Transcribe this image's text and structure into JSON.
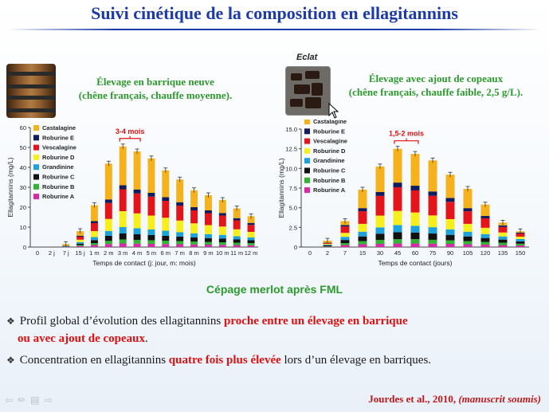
{
  "slide": {
    "title": "Suivi cinétique de la composition en ellagitannins",
    "eclat_label": "Eclat",
    "left_condition": {
      "line1": "Élevage en barrique neuve",
      "line2": "(chêne français, chauffe moyenne)."
    },
    "right_condition": {
      "line1": "Élevage avec ajout de copeaux",
      "line2": "(chêne français, chauffe faible, 2,5 g/L)."
    },
    "cepage": "Cépage merlot après FML",
    "bullet1": {
      "text_a": "Profil global d’évolution des ellagitannins ",
      "red_a": "proche entre un élevage en barrique",
      "red_b": "ou avec ajout de copeaux",
      "end_b": "."
    },
    "bullet2": {
      "text_a": "Concentration en ellagitannins ",
      "red_a": "quatre fois plus élevée",
      "text_b": " lors d’un élevage en barriques."
    },
    "citation": {
      "authors": "Jourdes et al., 2010, ",
      "note": "(manuscrit soumis)"
    },
    "nav_icons": [
      "back-arrow-icon",
      "pen-icon",
      "menu-icon",
      "forward-arrow-icon"
    ],
    "colors": {
      "title": "#1c3aa9",
      "green": "#2c9a2c",
      "red": "#e31010"
    }
  },
  "chart_data": [
    {
      "type": "bar",
      "stacked": true,
      "categories": [
        "0",
        "2 j",
        "7 j",
        "15 j",
        "1 m",
        "2 m",
        "3 m",
        "4 m",
        "5 m",
        "6 m",
        "7 m",
        "8 m",
        "9 m",
        "10 m",
        "11 m",
        "12 m"
      ],
      "ylabel": "Ellagitannins (mg/L)",
      "xlabel": "Temps de contact (j: jour, m: mois)",
      "ylim": [
        0,
        60
      ],
      "yticks": [
        "0",
        "10",
        "20",
        "30",
        "40",
        "50",
        "60"
      ],
      "annotation": "3-4 mois",
      "annotation_range": [
        "3 m",
        "4 m"
      ],
      "legend_position": "top-left",
      "series": [
        {
          "name": "Roburine A",
          "color": "#d62aa7",
          "values": [
            0,
            0,
            0.1,
            0.5,
            1,
            1.5,
            1.8,
            1.7,
            1.6,
            1.5,
            1.4,
            1.3,
            1.2,
            1.1,
            1.0,
            0.9
          ]
        },
        {
          "name": "Roburine B",
          "color": "#33b233",
          "values": [
            0,
            0,
            0.1,
            0.5,
            1,
            1.6,
            2.0,
            1.9,
            1.8,
            1.7,
            1.6,
            1.5,
            1.4,
            1.3,
            1.2,
            1.1
          ]
        },
        {
          "name": "Roburine C",
          "color": "#111111",
          "values": [
            0,
            0,
            0.1,
            0.7,
            1.5,
            2.5,
            3.0,
            2.8,
            2.6,
            2.4,
            2.2,
            2.0,
            1.9,
            1.8,
            1.6,
            1.4
          ]
        },
        {
          "name": "Grandinine",
          "color": "#1ea0d8",
          "values": [
            0,
            0,
            0.1,
            0.8,
            1.5,
            2.5,
            3.2,
            3.0,
            2.8,
            2.6,
            2.3,
            2.1,
            2.0,
            1.9,
            1.6,
            1.4
          ]
        },
        {
          "name": "Roburine D",
          "color": "#f7ee1e",
          "values": [
            0,
            0,
            0.2,
            1.2,
            3,
            6,
            8,
            7.5,
            7,
            6.5,
            5.8,
            5,
            4.5,
            4.2,
            3.5,
            2.8
          ]
        },
        {
          "name": "Vescalagine",
          "color": "#e3151b",
          "values": [
            0,
            0,
            0.2,
            1.5,
            4,
            8,
            11.0,
            10,
            9.5,
            8.5,
            7.5,
            6.5,
            6.0,
            5.5,
            4.5,
            3.5
          ]
        },
        {
          "name": "Roburine E",
          "color": "#0f1d5c",
          "values": [
            0,
            0,
            0.1,
            0.5,
            1,
            1.8,
            2.0,
            2.0,
            1.9,
            1.8,
            1.7,
            1.6,
            1.4,
            1.3,
            1.1,
            1.0
          ]
        },
        {
          "name": "Castalagine",
          "color": "#f5b21c",
          "values": [
            0,
            0,
            0.6,
            2.3,
            8,
            18,
            19.5,
            19.1,
            17.3,
            13.5,
            11.4,
            8.5,
            7.6,
            6.5,
            4.9,
            3.4
          ]
        }
      ]
    },
    {
      "type": "bar",
      "stacked": true,
      "categories": [
        "0",
        "2",
        "7",
        "15",
        "30",
        "45",
        "60",
        "75",
        "90",
        "105",
        "120",
        "135",
        "150"
      ],
      "ylabel": "Ellagitannins (mg/L)",
      "xlabel": "Temps de contact (jours)",
      "ylim": [
        0,
        15
      ],
      "yticks": [
        "0",
        "2.5",
        "5.0",
        "7.5",
        "10.0",
        "12.5",
        "15.0"
      ],
      "annotation": "1,5-2 mois",
      "annotation_range": [
        "45",
        "60"
      ],
      "legend_position": "top-left",
      "series": [
        {
          "name": "Roburine A",
          "color": "#d62aa7",
          "values": [
            0,
            0.05,
            0.25,
            0.35,
            0.4,
            0.45,
            0.45,
            0.42,
            0.4,
            0.35,
            0.3,
            0.25,
            0.2
          ]
        },
        {
          "name": "Roburine B",
          "color": "#33b233",
          "values": [
            0,
            0.05,
            0.25,
            0.4,
            0.5,
            0.55,
            0.55,
            0.5,
            0.45,
            0.4,
            0.35,
            0.3,
            0.22
          ]
        },
        {
          "name": "Roburine C",
          "color": "#111111",
          "values": [
            0,
            0.1,
            0.4,
            0.6,
            0.8,
            0.9,
            0.85,
            0.8,
            0.7,
            0.6,
            0.5,
            0.4,
            0.3
          ]
        },
        {
          "name": "Grandinine",
          "color": "#1ea0d8",
          "values": [
            0,
            0.1,
            0.4,
            0.6,
            0.8,
            0.9,
            0.85,
            0.8,
            0.7,
            0.6,
            0.5,
            0.4,
            0.3
          ]
        },
        {
          "name": "Roburine D",
          "color": "#f7ee1e",
          "values": [
            0,
            0.1,
            0.5,
            1.0,
            1.5,
            1.8,
            1.7,
            1.5,
            1.3,
            1.0,
            0.8,
            0.5,
            0.3
          ]
        },
        {
          "name": "Vescalagine",
          "color": "#e3151b",
          "values": [
            0,
            0.1,
            0.8,
            1.6,
            2.5,
            3.0,
            2.8,
            2.5,
            2.2,
            1.6,
            1.2,
            0.7,
            0.4
          ]
        },
        {
          "name": "Roburine E",
          "color": "#0f1d5c",
          "values": [
            0,
            0.05,
            0.2,
            0.4,
            0.5,
            0.6,
            0.6,
            0.55,
            0.5,
            0.4,
            0.3,
            0.2,
            0.12
          ]
        },
        {
          "name": "Castalagine",
          "color": "#f5b21c",
          "values": [
            0,
            0.25,
            0.5,
            2.35,
            3.25,
            4.3,
            4.05,
            3.95,
            2.95,
            2.45,
            1.45,
            0.35,
            0.16
          ]
        }
      ]
    }
  ]
}
